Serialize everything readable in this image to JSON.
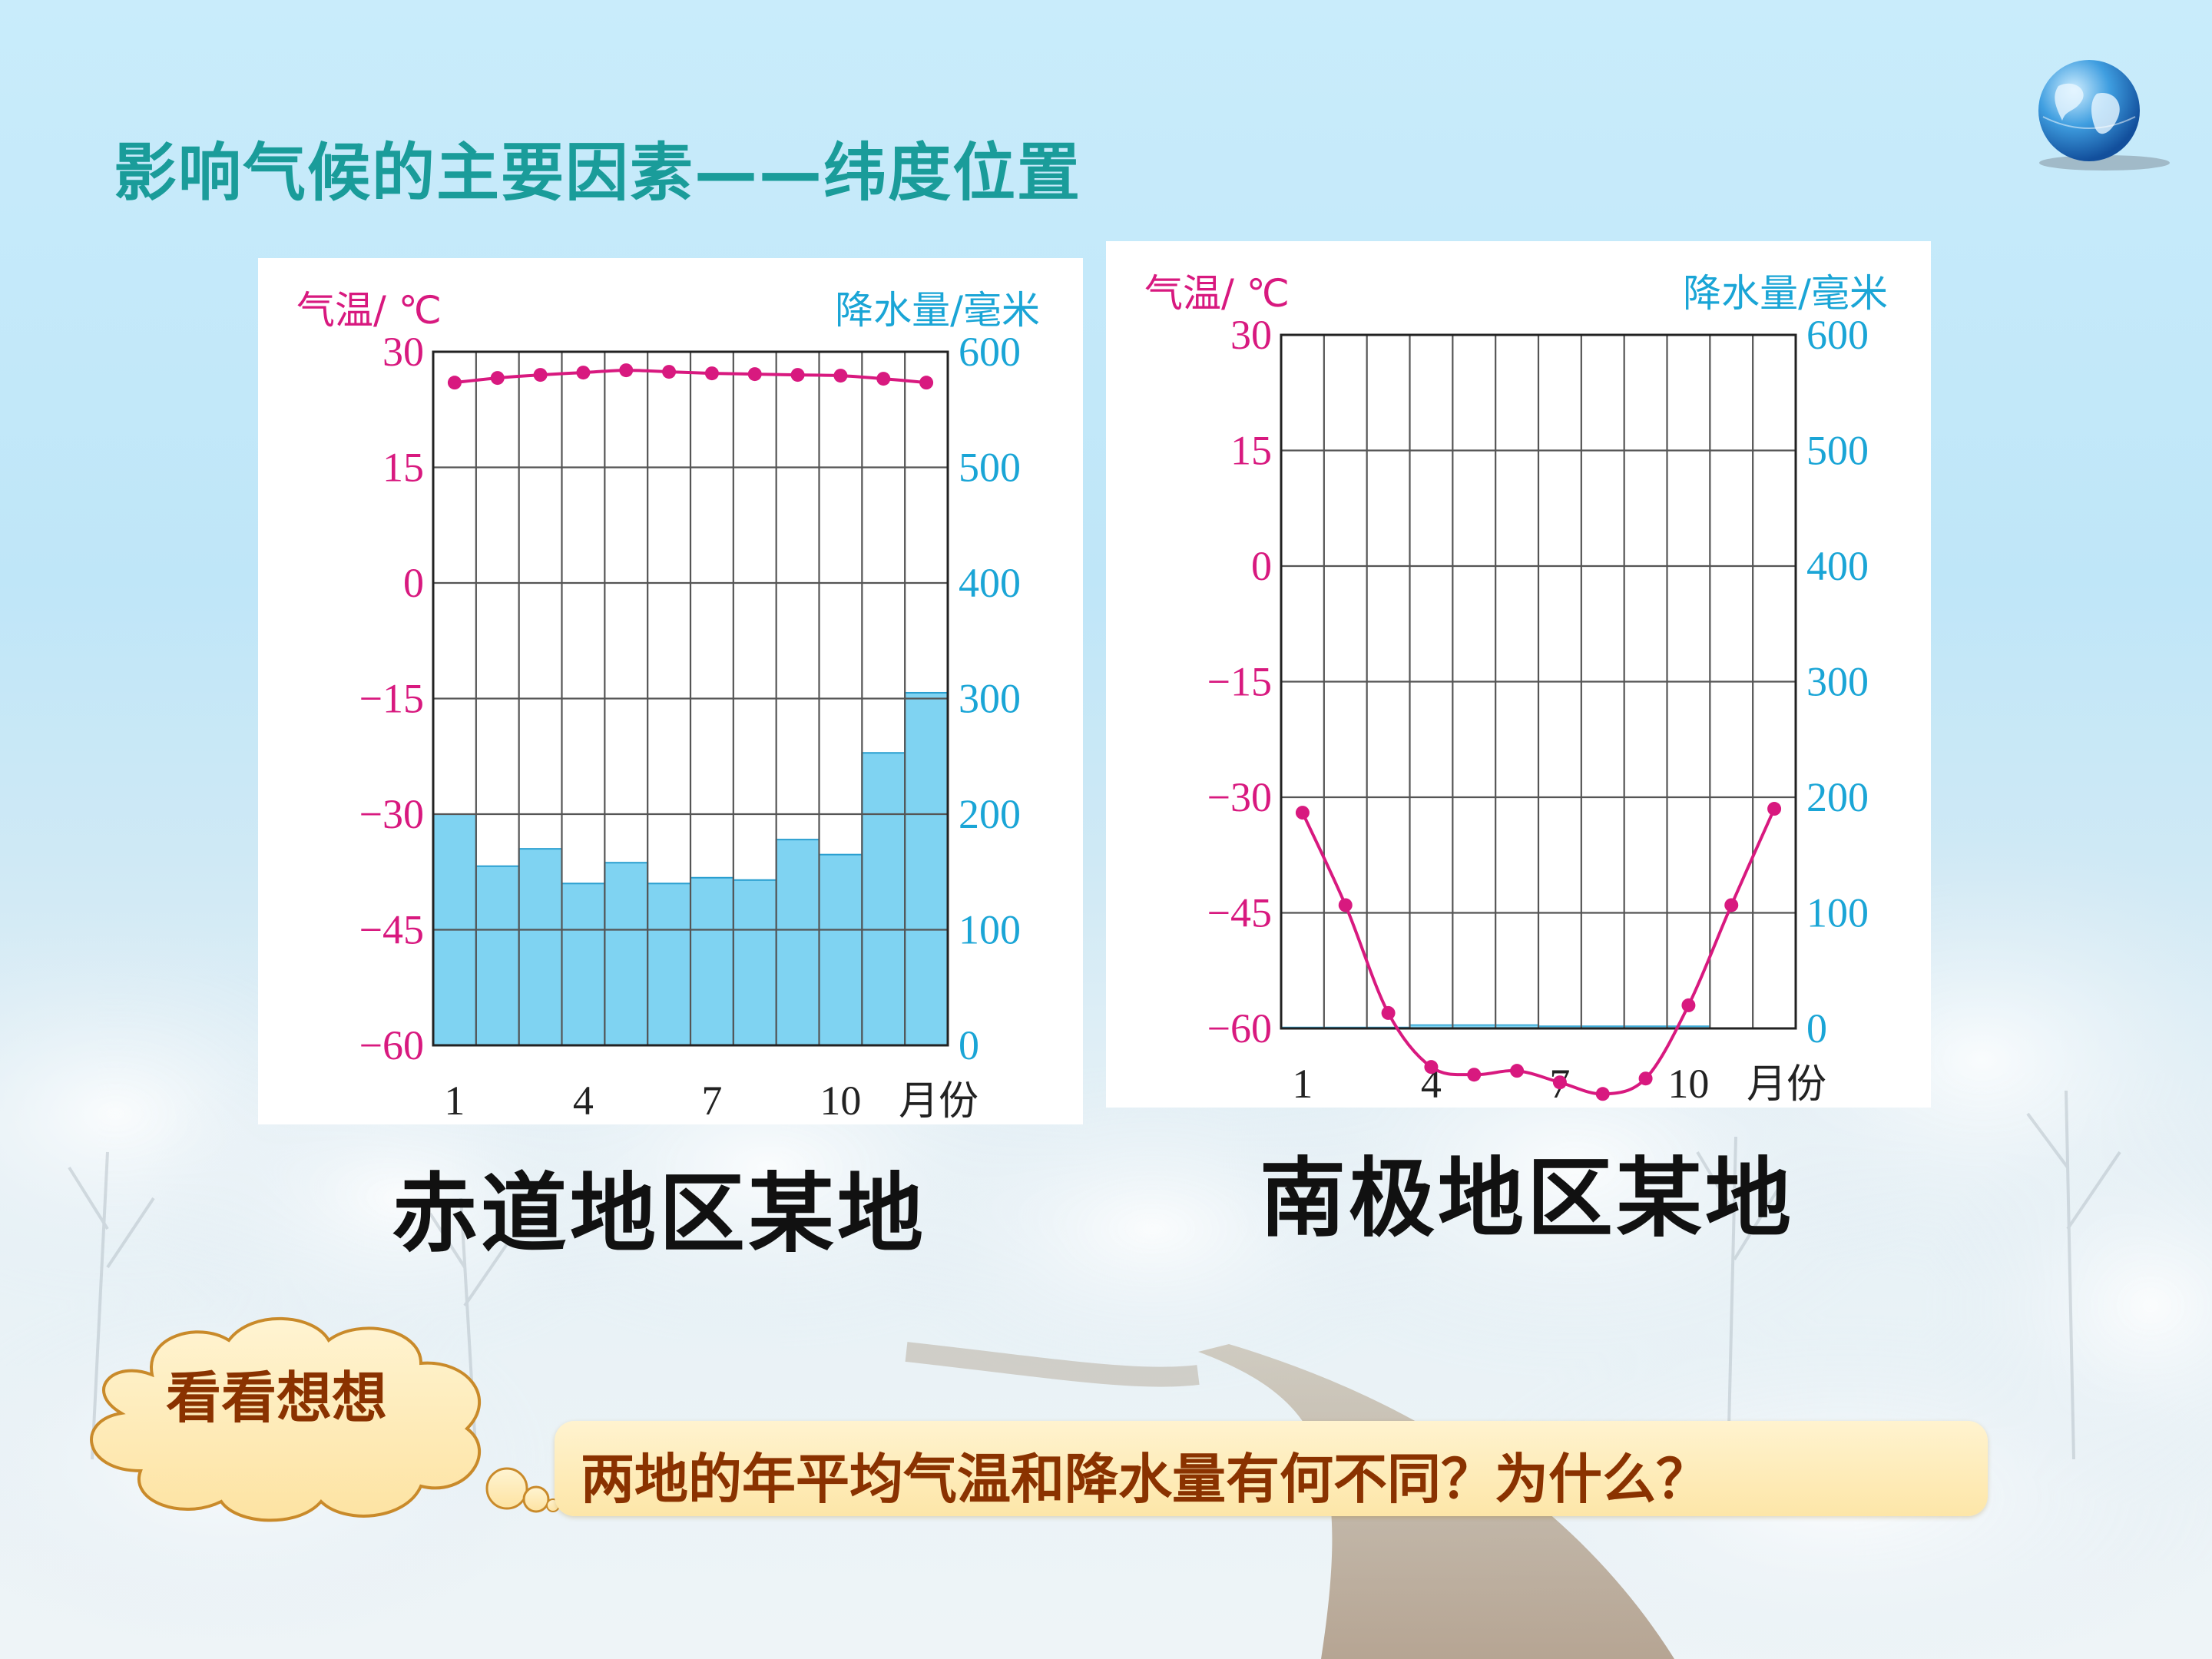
{
  "slide": {
    "title": "影响气候的主要因素——纬度位置",
    "captions": [
      "赤道地区某地",
      "南极地区某地"
    ],
    "cloud_label": "看看想想",
    "question": "两地的年平均气温和降水量有何不同？为什么？"
  },
  "colors": {
    "title": "#1a9c9a",
    "temperature": "#d8197f",
    "precipitation": "#1aa5d6",
    "precip_fill": "#7fd3f2",
    "caption_text": "#8a3200"
  },
  "chart_data": [
    {
      "type": "bar+line",
      "caption": "赤道地区某地",
      "y_left_label": "气温/ ℃",
      "y_right_label": "降水量/毫米",
      "x_label": "月份",
      "x_ticks": [
        "1",
        "4",
        "7",
        "10"
      ],
      "months": [
        1,
        2,
        3,
        4,
        5,
        6,
        7,
        8,
        9,
        10,
        11,
        12
      ],
      "temp_ticks": [
        "30",
        "15",
        "0",
        "−15",
        "−30",
        "−45",
        "−60"
      ],
      "precip_ticks": [
        "600",
        "500",
        "400",
        "300",
        "200",
        "100",
        "0"
      ],
      "ylim_temp": [
        -60,
        30
      ],
      "ylim_precip": [
        0,
        600
      ],
      "grid": true,
      "series": [
        {
          "name": "气温",
          "kind": "line",
          "unit": "℃",
          "values": [
            26,
            26.6,
            27,
            27.3,
            27.6,
            27.4,
            27.2,
            27.1,
            27,
            26.9,
            26.5,
            26
          ]
        },
        {
          "name": "降水量",
          "kind": "bar",
          "unit": "毫米",
          "values": [
            200,
            155,
            170,
            140,
            158,
            140,
            145,
            143,
            178,
            165,
            253,
            305
          ]
        }
      ]
    },
    {
      "type": "bar+line",
      "caption": "南极地区某地",
      "y_left_label": "气温/ ℃",
      "y_right_label": "降水量/毫米",
      "x_label": "月份",
      "x_ticks": [
        "1",
        "4",
        "7",
        "10"
      ],
      "months": [
        1,
        2,
        3,
        4,
        5,
        6,
        7,
        8,
        9,
        10,
        11,
        12
      ],
      "temp_ticks": [
        "30",
        "15",
        "0",
        "−15",
        "−30",
        "−45",
        "−60"
      ],
      "precip_ticks": [
        "600",
        "500",
        "400",
        "300",
        "200",
        "100",
        "0"
      ],
      "ylim_temp": [
        -60,
        30
      ],
      "ylim_precip": [
        0,
        600
      ],
      "grid": true,
      "series": [
        {
          "name": "气温",
          "kind": "line",
          "unit": "℃",
          "values": [
            -32,
            -44,
            -58,
            -65,
            -66,
            -65.5,
            -67,
            -68.5,
            -66.5,
            -57,
            -44,
            -31.5
          ]
        },
        {
          "name": "降水量",
          "kind": "bar",
          "unit": "毫米",
          "values": [
            1,
            1,
            1,
            3,
            3,
            3,
            2,
            2,
            2,
            2,
            0.5,
            0.5
          ]
        }
      ]
    }
  ]
}
